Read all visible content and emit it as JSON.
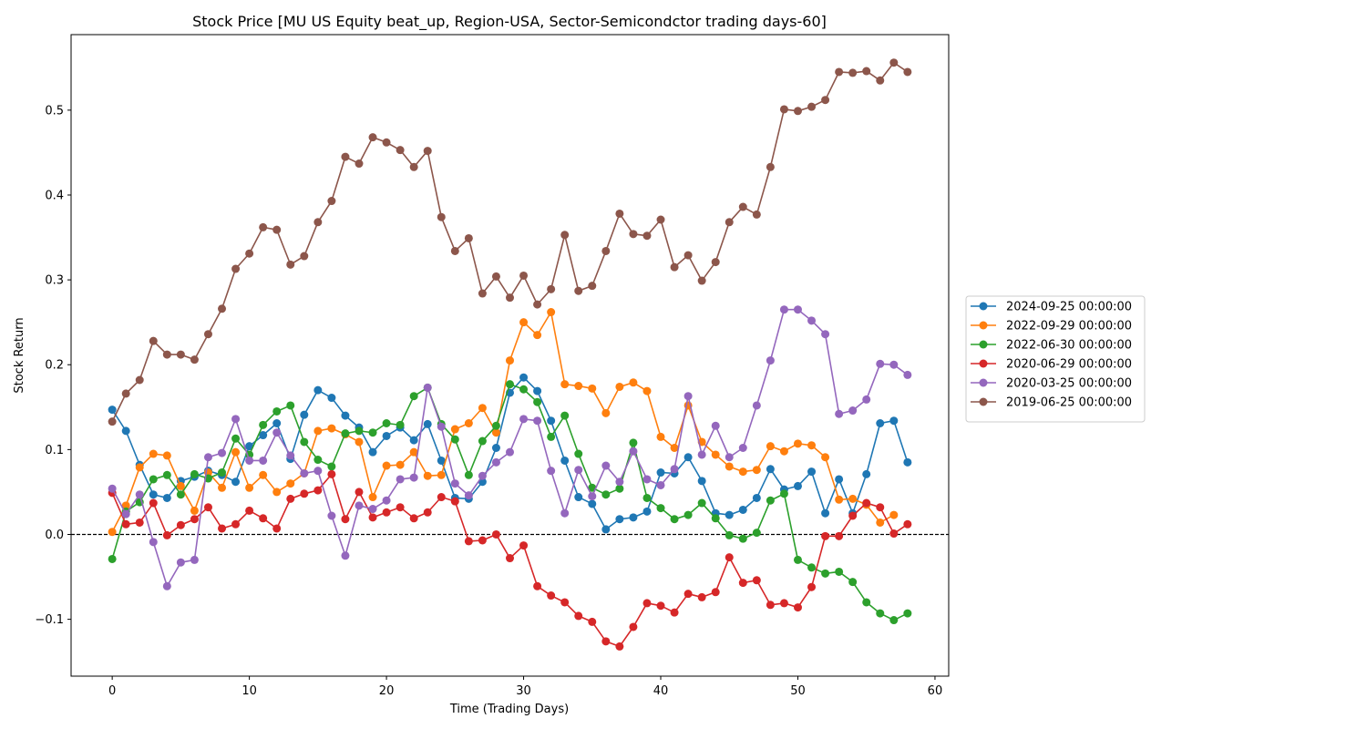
{
  "chart_data": {
    "type": "line",
    "title": "Stock Price [MU US Equity beat_up, Region-USA, Sector-Semicondctor trading days-60]",
    "xlabel": "Time (Trading Days)",
    "ylabel": "Stock Return",
    "xlim": [
      -3,
      61
    ],
    "ylim": [
      -0.167,
      0.589
    ],
    "xticks": [
      0,
      10,
      20,
      30,
      40,
      50,
      60
    ],
    "yticks": [
      -0.1,
      0.0,
      0.1,
      0.2,
      0.3,
      0.4,
      0.5
    ],
    "ytick_labels": [
      "−0.1",
      "0.0",
      "0.1",
      "0.2",
      "0.3",
      "0.4",
      "0.5"
    ],
    "reference_line": {
      "y": 0,
      "style": "dashed",
      "color": "#000000"
    },
    "grid": false,
    "legend_position": "right, outside plot",
    "x": [
      0,
      1,
      2,
      3,
      4,
      5,
      6,
      7,
      8,
      9,
      10,
      11,
      12,
      13,
      14,
      15,
      16,
      17,
      18,
      19,
      20,
      21,
      22,
      23,
      24,
      25,
      26,
      27,
      28,
      29,
      30,
      31,
      32,
      33,
      34,
      35,
      36,
      37,
      38,
      39,
      40,
      41,
      42,
      43,
      44,
      45,
      46,
      47,
      48,
      49,
      50,
      51,
      52,
      53,
      54,
      55,
      56,
      57,
      58
    ],
    "series": [
      {
        "name": "2024-09-25 00:00:00",
        "color": "#1f77b4",
        "values": [
          0.147,
          0.122,
          0.082,
          0.047,
          0.043,
          0.063,
          0.068,
          0.075,
          0.07,
          0.062,
          0.104,
          0.117,
          0.131,
          0.089,
          0.141,
          0.17,
          0.161,
          0.14,
          0.126,
          0.097,
          0.116,
          0.126,
          0.111,
          0.13,
          0.087,
          0.043,
          0.042,
          0.062,
          0.102,
          0.167,
          0.185,
          0.169,
          0.134,
          0.087,
          0.044,
          0.036,
          0.006,
          0.018,
          0.02,
          0.027,
          0.073,
          0.072,
          0.091,
          0.063,
          0.025,
          0.023,
          0.029,
          0.043,
          0.077,
          0.053,
          0.057,
          0.074,
          0.025,
          0.065,
          0.025,
          0.071,
          0.131,
          0.134,
          0.085
        ]
      },
      {
        "name": "2022-09-29 00:00:00",
        "color": "#ff7f0e",
        "values": [
          0.003,
          0.034,
          0.079,
          0.095,
          0.093,
          0.057,
          0.028,
          0.073,
          0.055,
          0.097,
          0.055,
          0.07,
          0.05,
          0.06,
          0.072,
          0.122,
          0.125,
          0.118,
          0.109,
          0.044,
          0.081,
          0.082,
          0.097,
          0.069,
          0.07,
          0.124,
          0.131,
          0.149,
          0.12,
          0.205,
          0.25,
          0.235,
          0.262,
          0.177,
          0.175,
          0.172,
          0.143,
          0.174,
          0.179,
          0.169,
          0.115,
          0.102,
          0.152,
          0.109,
          0.094,
          0.08,
          0.074,
          0.076,
          0.104,
          0.098,
          0.107,
          0.105,
          0.091,
          0.041,
          0.042,
          0.035,
          0.014,
          0.023,
          null
        ]
      },
      {
        "name": "2022-06-30 00:00:00",
        "color": "#2ca02c",
        "values": [
          -0.029,
          0.027,
          0.038,
          0.065,
          0.07,
          0.047,
          0.071,
          0.066,
          0.073,
          0.113,
          0.094,
          0.129,
          0.145,
          0.152,
          0.109,
          0.088,
          0.08,
          0.119,
          0.122,
          0.12,
          0.131,
          0.129,
          0.163,
          0.173,
          0.13,
          0.112,
          0.07,
          0.11,
          0.128,
          0.177,
          0.171,
          0.156,
          0.115,
          0.14,
          0.095,
          0.055,
          0.047,
          0.054,
          0.108,
          0.043,
          0.031,
          0.018,
          0.023,
          0.037,
          0.019,
          -0.001,
          -0.005,
          0.002,
          0.04,
          0.048,
          -0.03,
          -0.039,
          -0.046,
          -0.044,
          -0.056,
          -0.08,
          -0.093,
          -0.101,
          -0.093
        ]
      },
      {
        "name": "2020-06-29 00:00:00",
        "color": "#d62728",
        "values": [
          0.049,
          0.012,
          0.014,
          0.037,
          -0.001,
          0.011,
          0.018,
          0.032,
          0.007,
          0.012,
          0.028,
          0.019,
          0.007,
          0.042,
          0.048,
          0.052,
          0.071,
          0.018,
          0.05,
          0.02,
          0.026,
          0.032,
          0.019,
          0.026,
          0.044,
          0.039,
          -0.008,
          -0.007,
          0.0,
          -0.028,
          -0.013,
          -0.061,
          -0.072,
          -0.08,
          -0.096,
          -0.103,
          -0.126,
          -0.132,
          -0.109,
          -0.081,
          -0.084,
          -0.092,
          -0.07,
          -0.074,
          -0.068,
          -0.027,
          -0.057,
          -0.054,
          -0.083,
          -0.081,
          -0.086,
          -0.062,
          -0.002,
          -0.002,
          0.022,
          0.037,
          0.032,
          0.001,
          0.012
        ]
      },
      {
        "name": "2020-03-25 00:00:00",
        "color": "#9467bd",
        "values": [
          0.054,
          0.024,
          0.047,
          -0.009,
          -0.061,
          -0.033,
          -0.03,
          0.091,
          0.096,
          0.136,
          0.087,
          0.087,
          0.12,
          0.093,
          0.072,
          0.075,
          0.022,
          -0.025,
          0.034,
          0.03,
          0.04,
          0.065,
          0.067,
          0.173,
          0.127,
          0.06,
          0.046,
          0.069,
          0.085,
          0.097,
          0.136,
          0.134,
          0.075,
          0.025,
          0.076,
          0.045,
          0.081,
          0.062,
          0.098,
          0.065,
          0.058,
          0.077,
          0.163,
          0.094,
          0.128,
          0.091,
          0.102,
          0.152,
          0.205,
          0.265,
          0.265,
          0.252,
          0.236,
          0.142,
          0.146,
          0.159,
          0.201,
          0.2,
          0.188
        ]
      },
      {
        "name": "2019-06-25 00:00:00",
        "color": "#8c564b",
        "values": [
          0.133,
          0.166,
          0.182,
          0.228,
          0.212,
          0.212,
          0.206,
          0.236,
          0.266,
          0.313,
          0.331,
          0.362,
          0.359,
          0.318,
          0.328,
          0.368,
          0.393,
          0.445,
          0.437,
          0.468,
          0.462,
          0.453,
          0.433,
          0.452,
          0.374,
          0.334,
          0.349,
          0.284,
          0.304,
          0.279,
          0.305,
          0.271,
          0.289,
          0.353,
          0.287,
          0.293,
          0.334,
          0.378,
          0.354,
          0.352,
          0.371,
          0.315,
          0.329,
          0.299,
          0.321,
          0.368,
          0.386,
          0.377,
          0.433,
          0.501,
          0.499,
          0.504,
          0.512,
          0.545,
          0.544,
          0.546,
          0.535,
          0.556,
          0.545
        ]
      }
    ]
  }
}
